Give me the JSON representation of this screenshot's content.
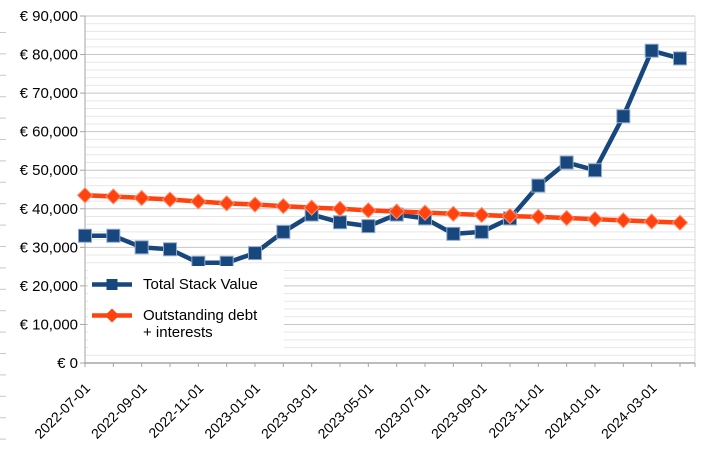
{
  "chart_data": {
    "type": "line",
    "title": "",
    "x": [
      "2022-07-01",
      "2022-08-01",
      "2022-09-01",
      "2022-10-01",
      "2022-11-01",
      "2022-12-01",
      "2023-01-01",
      "2023-02-01",
      "2023-03-01",
      "2023-04-01",
      "2023-05-01",
      "2023-06-01",
      "2023-07-01",
      "2023-08-01",
      "2023-09-01",
      "2023-10-01",
      "2023-11-01",
      "2023-12-01",
      "2024-01-01",
      "2024-02-01",
      "2024-03-01",
      "2024-04-01"
    ],
    "x_label_every": 2,
    "x_tick_labels_shown": [
      "2022-07-01",
      "2022-09-01",
      "2022-11-01",
      "2023-01-01",
      "2023-03-01",
      "2023-05-01",
      "2023-07-01",
      "2023-09-01",
      "2023-11-01",
      "2024-01-01",
      "2024-03-01"
    ],
    "ylim": [
      0,
      90000
    ],
    "y_major_step": 10000,
    "y_minor_step": 2000,
    "y_tick_labels": [
      "€ 0",
      "€ 10,000",
      "€ 20,000",
      "€ 30,000",
      "€ 40,000",
      "€ 50,000",
      "€ 60,000",
      "€ 70,000",
      "€ 80,000",
      "€ 90,000"
    ],
    "grid": "horizontal major + minor, no vertical gridlines",
    "legend_position": "overlay bottom-left",
    "series": [
      {
        "name": "Total Stack Value",
        "marker": "square",
        "color": "#17477C",
        "marker_edge": "#8FA9CC",
        "values": [
          33000,
          33000,
          30000,
          29500,
          26000,
          26000,
          28500,
          34000,
          38500,
          36500,
          35500,
          38500,
          37500,
          33500,
          34000,
          37500,
          46000,
          52000,
          50000,
          64000,
          81000,
          79000
        ]
      },
      {
        "name": "Outstanding debt + interests",
        "marker": "diamond",
        "color": "#FF420E",
        "marker_edge": "#FF9170",
        "values": [
          43500,
          43200,
          42800,
          42400,
          41900,
          41400,
          41100,
          40700,
          40300,
          40000,
          39600,
          39300,
          39000,
          38700,
          38400,
          38100,
          37900,
          37600,
          37300,
          37000,
          36700,
          36400
        ]
      }
    ],
    "style": {
      "grid_major": "#c6c6c6",
      "grid_minor": "#e7e7e7",
      "axis": "#a6a6a6",
      "wall": "#d9d9d9",
      "text": "#000000"
    }
  },
  "legend": {
    "items": [
      {
        "label": "Total Stack Value"
      },
      {
        "label": "Outstanding debt + interests",
        "label_line1": "Outstanding debt",
        "label_line2": "+ interests"
      }
    ]
  }
}
